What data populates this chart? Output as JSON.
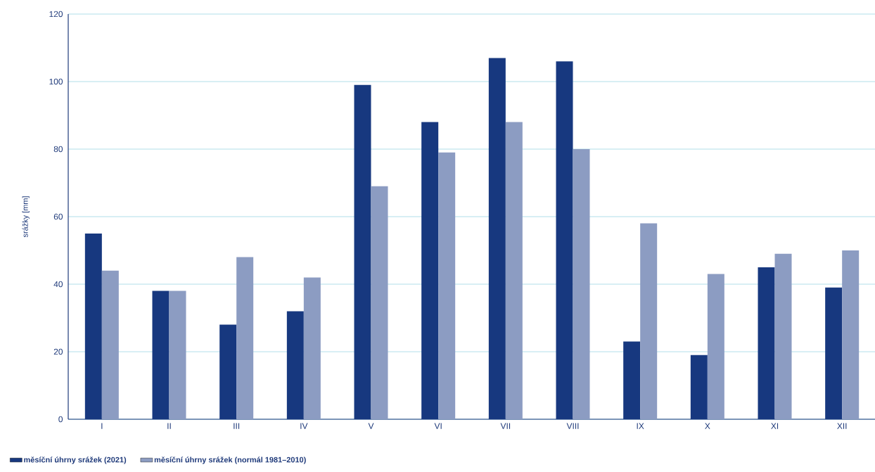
{
  "chart_data": {
    "type": "bar",
    "ylabel": "srážky [mm]",
    "categories": [
      "I",
      "II",
      "III",
      "IV",
      "V",
      "VI",
      "VII",
      "VIII",
      "IX",
      "X",
      "XI",
      "XII"
    ],
    "series": [
      {
        "name": "měsíční úhrny srážek (2021)",
        "color": "#17387f",
        "values": [
          55,
          38,
          28,
          32,
          99,
          88,
          107,
          106,
          23,
          19,
          45,
          39
        ]
      },
      {
        "name": "měsíční úhrny srážek (normál 1981–2010)",
        "color": "#8c9cc2",
        "values": [
          44,
          38,
          48,
          42,
          69,
          79,
          88,
          80,
          58,
          43,
          49,
          50
        ]
      }
    ],
    "ylim": [
      0,
      120
    ],
    "yticks": [
      0,
      20,
      40,
      60,
      80,
      100,
      120
    ],
    "grid": "y",
    "legend": "bottom left"
  }
}
